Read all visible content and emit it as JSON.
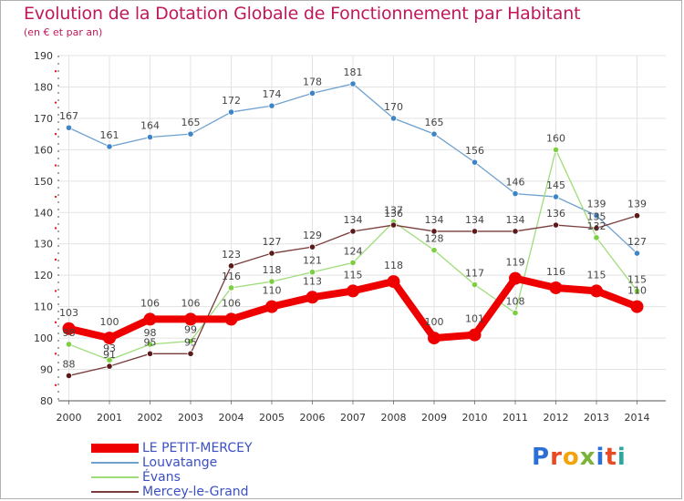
{
  "header": {
    "title": "Evolution de la Dotation Globale de Fonctionnement par Habitant",
    "subtitle": "(en € et par an)"
  },
  "logo": {
    "text": "Proxiti",
    "letters": [
      "P",
      "r",
      "o",
      "x",
      "i",
      "t",
      "i"
    ],
    "colors": [
      "#2a6fd6",
      "#e84a24",
      "#f5a30a",
      "#7bb33a",
      "#2a6fd6",
      "#e84a24",
      "#2aa8a0"
    ]
  },
  "chart_data": {
    "type": "line",
    "title": "Evolution de la Dotation Globale de Fonctionnement par Habitant",
    "subtitle": "(en € et par an)",
    "xlabel": "",
    "ylabel": "",
    "ylim": [
      80,
      190
    ],
    "yticks": [
      80,
      90,
      100,
      110,
      120,
      130,
      140,
      150,
      160,
      170,
      180,
      190
    ],
    "grid": true,
    "legend_position": "bottom-left",
    "categories": [
      "2000",
      "2001",
      "2002",
      "2003",
      "2004",
      "2005",
      "2006",
      "2007",
      "2008",
      "2009",
      "2010",
      "2011",
      "2012",
      "2013",
      "2014"
    ],
    "series": [
      {
        "name": "LE PETIT-MERCEY",
        "color": "#ee0000",
        "emphasis": true,
        "values": [
          103,
          100,
          106,
          106,
          106,
          110,
          113,
          115,
          118,
          100,
          101,
          119,
          116,
          115,
          110
        ]
      },
      {
        "name": "Louvatange",
        "color": "#6fa1cf",
        "point_color": "#3d85c6",
        "values": [
          167,
          161,
          164,
          165,
          172,
          174,
          178,
          181,
          170,
          165,
          156,
          146,
          145,
          139,
          127
        ]
      },
      {
        "name": "Évans",
        "color": "#9fdc7a",
        "point_color": "#7ccf3f",
        "values": [
          98,
          93,
          98,
          99,
          116,
          118,
          121,
          124,
          137,
          128,
          117,
          108,
          160,
          132,
          115
        ]
      },
      {
        "name": "Mercey-le-Grand",
        "color": "#7a3b3b",
        "point_color": "#5a1a1a",
        "values": [
          88,
          91,
          95,
          95,
          123,
          127,
          129,
          134,
          136,
          134,
          134,
          134,
          136,
          135,
          139
        ]
      }
    ]
  }
}
